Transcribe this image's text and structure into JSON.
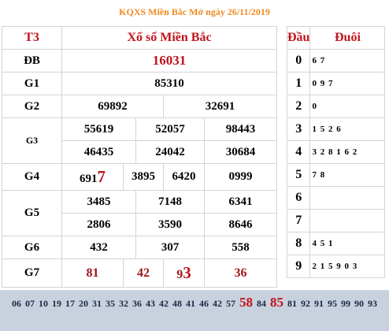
{
  "title": "KQXS Miền Bắc Mở ngày 26/11/2019",
  "header": {
    "day": "T3",
    "region": "Xổ số Miền Bắc",
    "dau": "Đầu",
    "duoi": "Đuôi"
  },
  "prizes": {
    "db": {
      "label": "ĐB",
      "values": [
        "16031"
      ]
    },
    "g1": {
      "label": "G1",
      "values": [
        "85310"
      ]
    },
    "g2": {
      "label": "G2",
      "values": [
        "69892",
        "32691"
      ]
    },
    "g3": {
      "label": "G3",
      "values": [
        "55619",
        "52057",
        "98443",
        "46435",
        "24042",
        "30684"
      ]
    },
    "g4": {
      "label": "G4",
      "values": [
        "6917",
        "3895",
        "6420",
        "0999"
      ],
      "first_prefix": "691",
      "first_suffix": "7"
    },
    "g5": {
      "label": "G5",
      "values": [
        "3485",
        "7148",
        "6341",
        "2806",
        "3590",
        "8646"
      ]
    },
    "g6": {
      "label": "G6",
      "values": [
        "432",
        "307",
        "558"
      ]
    },
    "g7": {
      "label": "G7",
      "values": [
        "81",
        "42",
        "93",
        "36"
      ],
      "third_prefix": "9",
      "third_suffix": "3"
    }
  },
  "dau_duoi": [
    {
      "dau": "0",
      "duoi": "6 7"
    },
    {
      "dau": "1",
      "duoi": "0 9 7"
    },
    {
      "dau": "2",
      "duoi": "0"
    },
    {
      "dau": "3",
      "duoi": "1 5 2 6"
    },
    {
      "dau": "4",
      "duoi": "3 2 8 1 6 2"
    },
    {
      "dau": "5",
      "duoi": "7 8"
    },
    {
      "dau": "6",
      "duoi": ""
    },
    {
      "dau": "7",
      "duoi": ""
    },
    {
      "dau": "8",
      "duoi": "4 5 1"
    },
    {
      "dau": "9",
      "duoi": "2 1 5 9 0 3"
    }
  ],
  "loto": [
    "06",
    "07",
    "10",
    "19",
    "17",
    "20",
    "31",
    "35",
    "32",
    "36",
    "43",
    "42",
    "48",
    "41",
    "46",
    "42",
    "57",
    "58",
    "84",
    "85",
    "81",
    "92",
    "91",
    "95",
    "99",
    "90",
    "93"
  ],
  "loto_highlight": [
    "58",
    "85"
  ],
  "colors": {
    "title": "#f08a1e",
    "red": "#c0141c",
    "loto_bg": "#c8d2de"
  }
}
